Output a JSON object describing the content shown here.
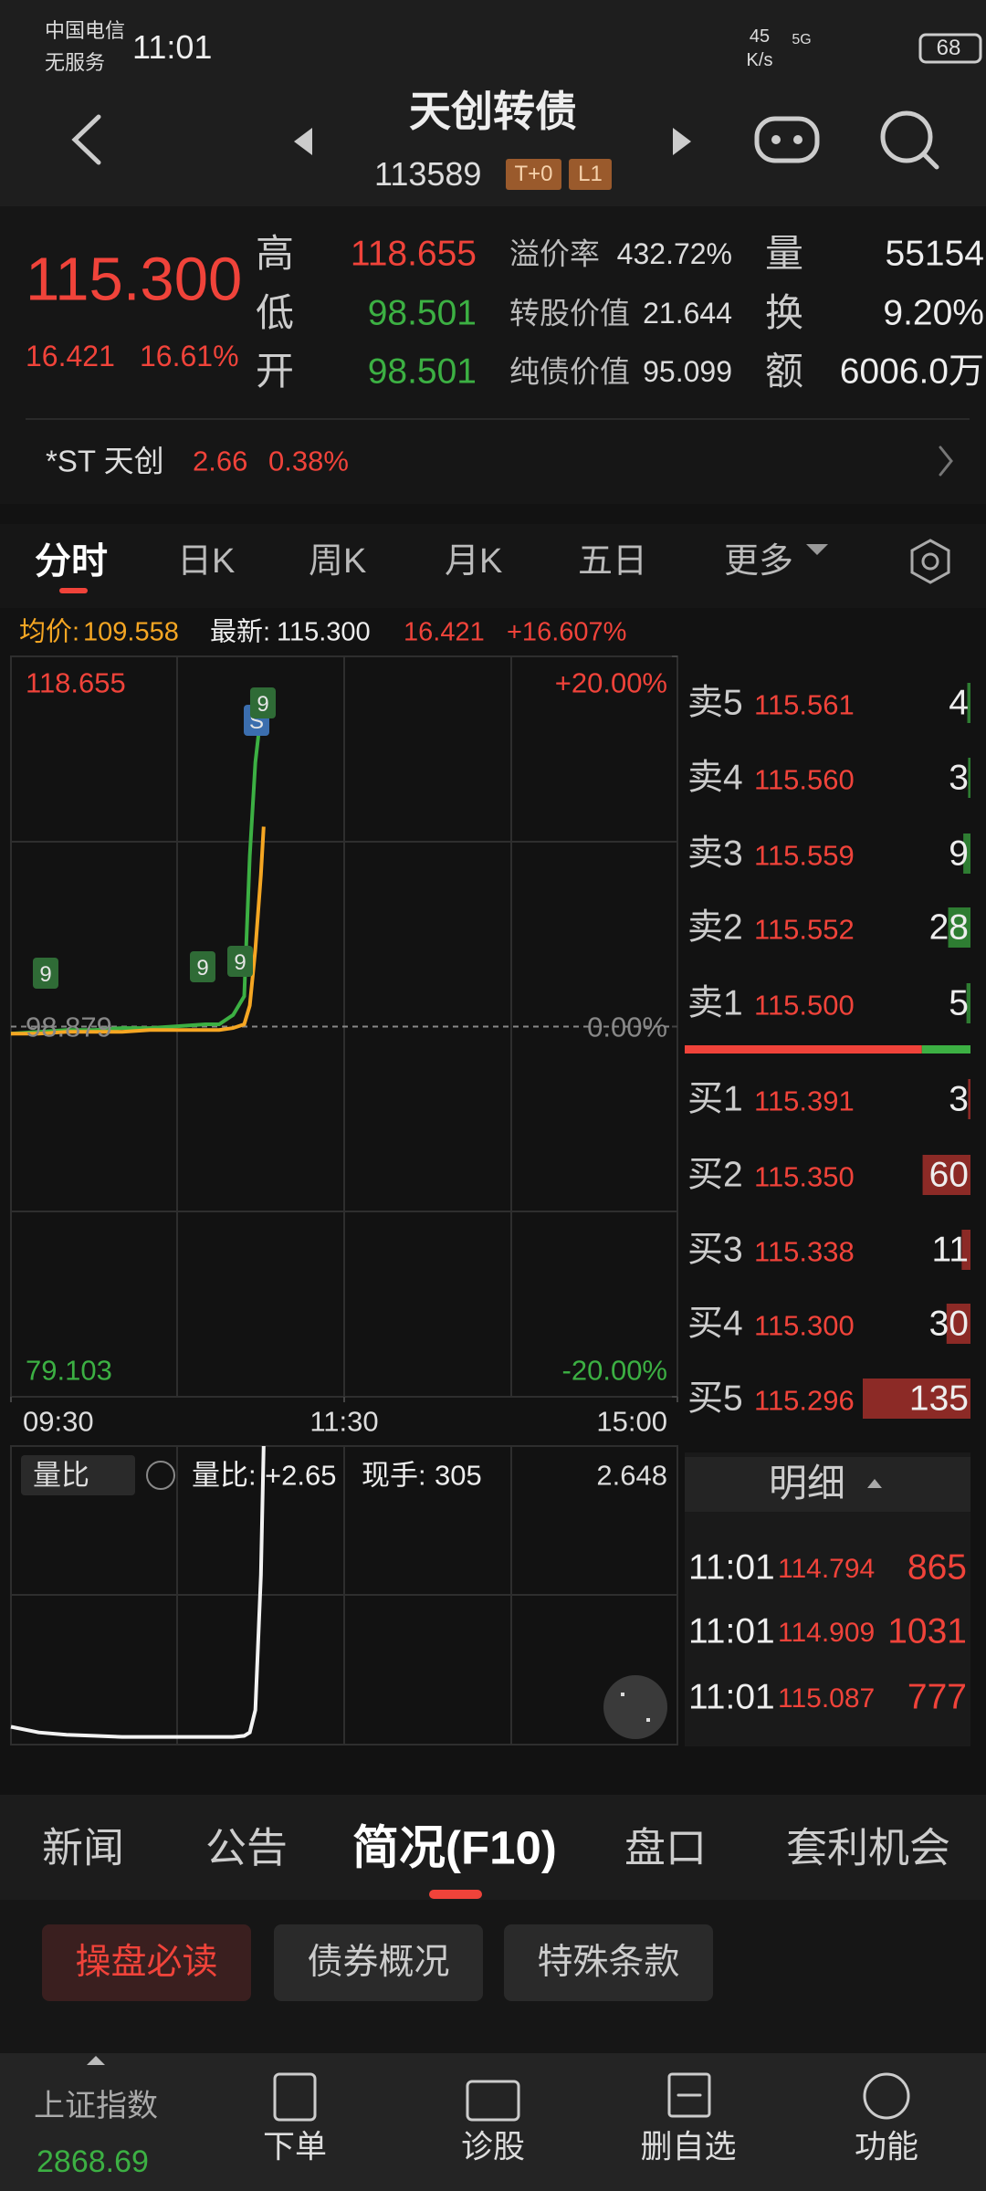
{
  "status_bar": {
    "carrier": "中国电信",
    "service": "无服务",
    "time": "11:01",
    "speed": "45",
    "speed_unit": "K/s",
    "network": "5G",
    "battery": "68"
  },
  "header": {
    "title": "天创转债",
    "code": "113589",
    "badges": [
      "T+0",
      "L1"
    ]
  },
  "quote": {
    "price": "115.300",
    "change": "16.421",
    "change_pct": "16.61%",
    "high_label": "高",
    "high": "118.655",
    "low_label": "低",
    "low": "98.501",
    "open_label": "开",
    "open": "98.501",
    "premium_label": "溢价率",
    "premium": "432.72%",
    "conv_label": "转股价值",
    "conv": "21.644",
    "bond_label": "纯债价值",
    "bond": "95.099",
    "vol_label": "量",
    "vol": "55154",
    "turn_label": "换",
    "turn": "9.20%",
    "amt_label": "额",
    "amt": "6006.0万"
  },
  "stock": {
    "name": "*ST 天创",
    "price": "2.66",
    "change_pct": "0.38%"
  },
  "tabs": [
    "分时",
    "日K",
    "周K",
    "月K",
    "五日",
    "更多"
  ],
  "info_bar": {
    "avg_label": "均价:",
    "avg": "109.558",
    "last_label": "最新:",
    "last": "115.300",
    "change": "16.421",
    "change_pct": "+16.607%"
  },
  "chart_data": [
    {
      "type": "line",
      "x": [
        "09:30",
        "09:40",
        "09:50",
        "10:00",
        "10:10",
        "10:20",
        "10:30",
        "10:40",
        "10:45",
        "10:50",
        "10:54",
        "10:56",
        "10:58",
        "11:00",
        "11:01"
      ],
      "series": [
        {
          "color": "#3cb043",
          "values": [
            98.5,
            98.6,
            98.7,
            98.7,
            98.8,
            98.8,
            98.9,
            99.0,
            99.0,
            99.5,
            100.5,
            108,
            113,
            115.6,
            115.3
          ]
        },
        {
          "color": "#f5a623",
          "values": [
            98.5,
            98.5,
            98.6,
            98.6,
            98.6,
            98.7,
            98.7,
            98.7,
            98.7,
            98.8,
            99.0,
            100,
            103,
            107,
            109.558
          ]
        }
      ],
      "xlim": [
        "09:30",
        "15:00"
      ],
      "xticks": [
        "09:30",
        "11:30",
        "15:00"
      ],
      "ylim": [
        79.103,
        118.655
      ],
      "yticks": [
        118.655,
        98.879,
        79.103
      ],
      "y2lim": [
        -20,
        20
      ],
      "y2ticks": [
        {
          "value": 20,
          "label": "+20.00%"
        },
        {
          "value": 0,
          "label": "0.00%"
        },
        {
          "value": -20,
          "label": "-20.00%"
        }
      ],
      "annotations": [
        "9",
        "9",
        "9",
        "S",
        "9"
      ]
    },
    {
      "type": "line",
      "x": [
        "09:30",
        "09:40",
        "09:50",
        "10:00",
        "10:10",
        "10:20",
        "10:30",
        "10:40",
        "10:45",
        "10:50",
        "10:54",
        "10:56",
        "10:58",
        "11:00",
        "11:01"
      ],
      "series": [
        {
          "color": "#f2f2f2",
          "values": [
            0.15,
            0.1,
            0.08,
            0.07,
            0.06,
            0.06,
            0.06,
            0.06,
            0.06,
            0.06,
            0.07,
            0.1,
            0.3,
            1.5,
            2.648
          ]
        }
      ],
      "xlim": [
        "09:30",
        "15:00"
      ],
      "ylim": [
        0,
        2.648
      ],
      "yticks": [
        2.648
      ]
    }
  ],
  "order_book": {
    "asks": [
      {
        "label": "卖5",
        "price": "115.561",
        "volume": 4
      },
      {
        "label": "卖4",
        "price": "115.560",
        "volume": 3
      },
      {
        "label": "卖3",
        "price": "115.559",
        "volume": 9
      },
      {
        "label": "卖2",
        "price": "115.552",
        "volume": 28
      },
      {
        "label": "卖1",
        "price": "115.500",
        "volume": 5
      }
    ],
    "bids": [
      {
        "label": "买1",
        "price": "115.391",
        "volume": 3
      },
      {
        "label": "买2",
        "price": "115.350",
        "volume": 60
      },
      {
        "label": "买3",
        "price": "115.338",
        "volume": 11
      },
      {
        "label": "买4",
        "price": "115.300",
        "volume": 30
      },
      {
        "label": "买5",
        "price": "115.296",
        "volume": 135
      }
    ]
  },
  "volume_panel": {
    "selector": "量比",
    "ratio_label": "量比:",
    "ratio": "+2.65",
    "hand_label": "现手:",
    "hand": "305"
  },
  "trades": {
    "title": "明细",
    "rows": [
      {
        "time": "11:01",
        "price": "114.794",
        "volume": "865"
      },
      {
        "time": "11:01",
        "price": "114.909",
        "volume": "1031"
      },
      {
        "time": "11:01",
        "price": "115.087",
        "volume": "777"
      }
    ]
  },
  "info_tabs": [
    "新闻",
    "公告",
    "简况(F10)",
    "盘口",
    "套利机会"
  ],
  "sub_tabs": [
    "操盘必读",
    "债券概况",
    "特殊条款"
  ],
  "bottom_nav": {
    "index_name": "上证指数",
    "index_value": "2868.69",
    "items": [
      "下单",
      "诊股",
      "删自选",
      "功能"
    ]
  }
}
